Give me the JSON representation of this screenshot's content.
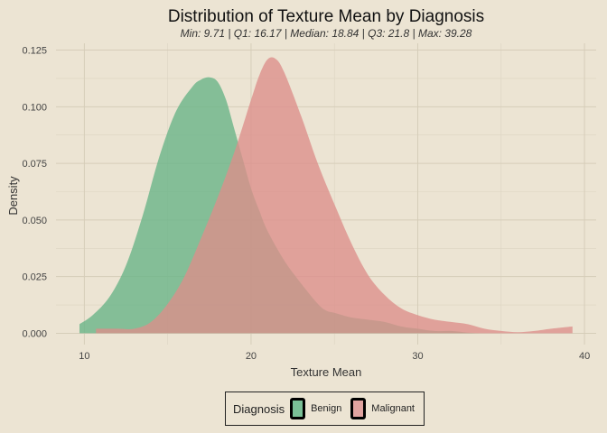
{
  "chart_data": {
    "type": "area",
    "title": "Distribution of Texture Mean by Diagnosis",
    "subtitle": "Min: 9.71 | Q1: 16.17 | Median: 18.84 | Q3: 21.8 | Max: 39.28",
    "xlabel": "Texture Mean",
    "ylabel": "Density",
    "xlim": [
      8.3,
      40.7
    ],
    "ylim": [
      -0.005,
      0.128
    ],
    "x_ticks": [
      "10",
      "20",
      "30",
      "40"
    ],
    "y_ticks": [
      "0.000",
      "0.025",
      "0.050",
      "0.075",
      "0.100",
      "0.125"
    ],
    "grid": true,
    "legend_position": "bottom",
    "legend_title": "Diagnosis",
    "series": [
      {
        "name": "Benign",
        "color": "#66b386",
        "x": [
          9.71,
          10.5,
          11.5,
          12.5,
          13.5,
          14.5,
          15.5,
          16.5,
          17.0,
          17.5,
          18.0,
          18.5,
          19.0,
          19.5,
          20.0,
          20.5,
          21.0,
          22.0,
          23.0,
          24.0,
          24.5,
          25.0,
          26.0,
          27.0,
          28.0,
          29.0,
          30.0,
          31.0,
          32.0,
          33.0,
          33.8
        ],
        "y": [
          0.004,
          0.008,
          0.016,
          0.03,
          0.052,
          0.078,
          0.098,
          0.109,
          0.112,
          0.113,
          0.111,
          0.103,
          0.09,
          0.077,
          0.064,
          0.054,
          0.045,
          0.032,
          0.022,
          0.013,
          0.01,
          0.009,
          0.007,
          0.006,
          0.005,
          0.003,
          0.002,
          0.001,
          0.001,
          0.0003,
          0.0
        ]
      },
      {
        "name": "Malignant",
        "color": "#dc8e8b",
        "x": [
          10.7,
          12.0,
          13.0,
          14.0,
          15.0,
          16.0,
          17.0,
          18.0,
          19.0,
          20.0,
          20.5,
          21.0,
          21.5,
          22.0,
          23.0,
          24.0,
          25.0,
          26.0,
          27.0,
          28.0,
          29.0,
          30.0,
          31.0,
          32.0,
          33.0,
          34.0,
          35.0,
          36.0,
          37.0,
          38.0,
          39.28
        ],
        "y": [
          0.002,
          0.002,
          0.002,
          0.005,
          0.013,
          0.025,
          0.042,
          0.06,
          0.08,
          0.103,
          0.114,
          0.121,
          0.121,
          0.115,
          0.096,
          0.075,
          0.057,
          0.04,
          0.026,
          0.017,
          0.011,
          0.008,
          0.006,
          0.005,
          0.004,
          0.002,
          0.001,
          0.0005,
          0.001,
          0.002,
          0.003
        ]
      }
    ]
  }
}
